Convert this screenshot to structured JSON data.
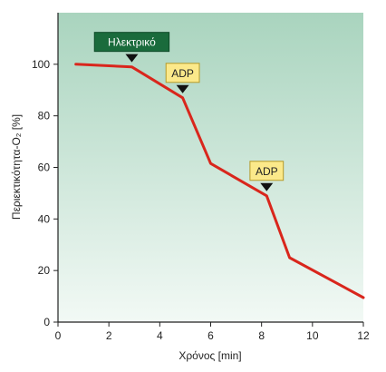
{
  "chart_data": {
    "type": "line",
    "title": "",
    "xlabel": "Χρόνος [min]",
    "ylabel": "Περιεκτικότητα-O₂ [%]",
    "xlim": [
      0,
      12
    ],
    "ylim": [
      0,
      120
    ],
    "x_ticks": [
      0,
      2,
      4,
      6,
      8,
      10,
      12
    ],
    "y_ticks": [
      0,
      20,
      40,
      60,
      80,
      100
    ],
    "grid": false,
    "background_gradient": [
      "#a9d4be",
      "#f2f9f5"
    ],
    "series": [
      {
        "color": "#d9261c",
        "x": [
          0.7,
          2.9,
          4.9,
          6.0,
          8.2,
          9.1,
          12.0
        ],
        "y": [
          100,
          99,
          87,
          61.5,
          49,
          25,
          9.5
        ]
      }
    ],
    "annotations": [
      {
        "label": "Ηλεκτρικό",
        "x": 2.9,
        "y": 99,
        "bg": "#1a6b3c",
        "fg": "#ffffff",
        "border": "#0e4a28"
      },
      {
        "label": "ADP",
        "x": 4.9,
        "y": 87,
        "bg": "#fbe98a",
        "fg": "#222222",
        "border": "#b59a2a"
      },
      {
        "label": "ADP",
        "x": 8.2,
        "y": 49,
        "bg": "#fbe98a",
        "fg": "#222222",
        "border": "#b59a2a"
      }
    ]
  }
}
